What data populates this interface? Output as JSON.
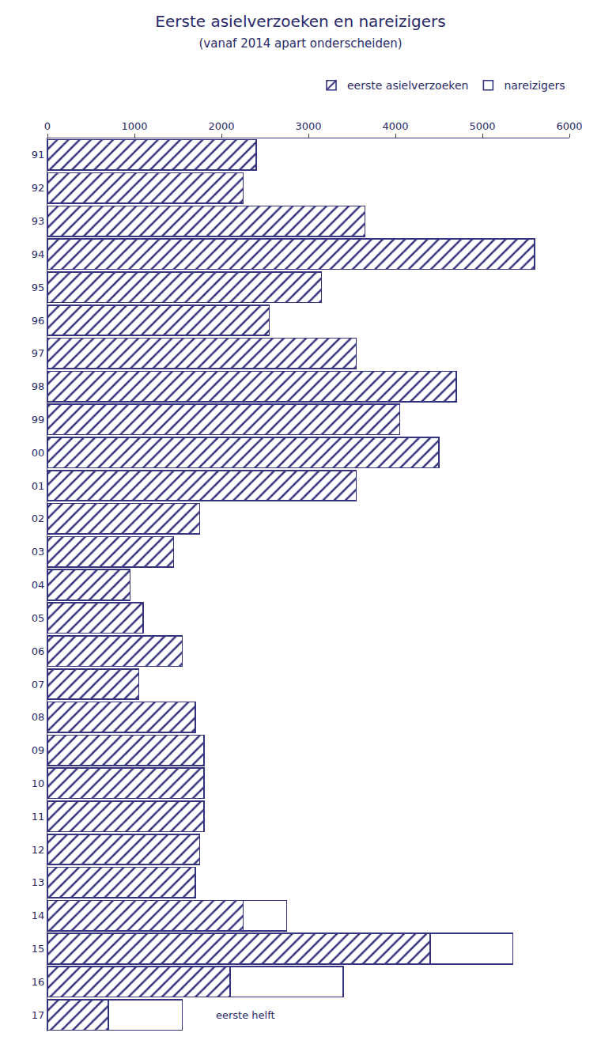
{
  "chart_data": {
    "type": "bar",
    "orientation": "horizontal",
    "stacked": true,
    "title": "Eerste asielverzoeken en nareizigers",
    "subtitle": "(vanaf 2014 apart onderscheiden)",
    "categories": [
      "91",
      "92",
      "93",
      "94",
      "95",
      "96",
      "97",
      "98",
      "99",
      "00",
      "01",
      "02",
      "03",
      "04",
      "05",
      "06",
      "07",
      "08",
      "09",
      "10",
      "11",
      "12",
      "13",
      "14",
      "15",
      "16",
      "17"
    ],
    "series": [
      {
        "name": "eerste asielverzoeken",
        "color": "#34347e",
        "marker": "hatched",
        "values": [
          2400,
          2250,
          3650,
          5600,
          3150,
          2550,
          3550,
          4700,
          4050,
          4500,
          3550,
          1750,
          1450,
          950,
          1100,
          1550,
          1050,
          1700,
          1800,
          1800,
          1800,
          1750,
          1700,
          2250,
          4400,
          2100,
          700
        ]
      },
      {
        "name": "nareizigers",
        "color": "#34347e",
        "marker": "outline",
        "values": [
          null,
          null,
          null,
          null,
          null,
          null,
          null,
          null,
          null,
          null,
          null,
          null,
          null,
          null,
          null,
          null,
          null,
          null,
          null,
          null,
          null,
          null,
          null,
          500,
          950,
          1300,
          850
        ]
      }
    ],
    "xlim": [
      0,
      6000
    ],
    "xticks": [
      0,
      1000,
      2000,
      3000,
      4000,
      5000,
      6000
    ],
    "grid": false,
    "legend": "top right",
    "annotations": [
      {
        "text": "eerste helft",
        "category": "17"
      }
    ]
  }
}
